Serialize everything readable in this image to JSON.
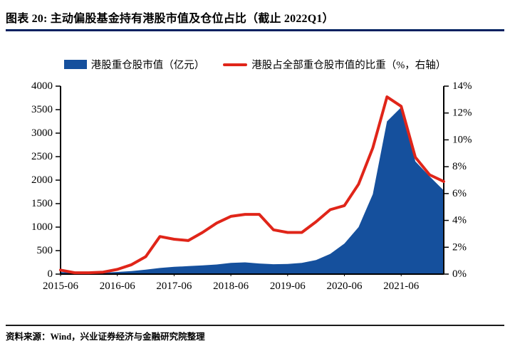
{
  "header": {
    "title": "图表 20:  主动偏股基金持有港股市值及仓位占比（截止 2022Q1）",
    "accent_color": "#002060"
  },
  "legend": {
    "items": [
      {
        "icon": "area-swatch",
        "label": "港股重仓股市值（亿元）"
      },
      {
        "icon": "line-swatch",
        "label": "港股占全部重仓股市值的比重（%，右轴）"
      }
    ]
  },
  "chart_data": {
    "type": "area+line",
    "title": "主动偏股基金持有港股市值及仓位占比",
    "grid": false,
    "legend_position": "top",
    "x": [
      "2015-06",
      "2015-09",
      "2015-12",
      "2016-03",
      "2016-06",
      "2016-09",
      "2016-12",
      "2017-03",
      "2017-06",
      "2017-09",
      "2017-12",
      "2018-03",
      "2018-06",
      "2018-09",
      "2018-12",
      "2019-03",
      "2019-06",
      "2019-09",
      "2019-12",
      "2020-03",
      "2020-06",
      "2020-09",
      "2020-12",
      "2021-03",
      "2021-06",
      "2021-09",
      "2021-12",
      "2022-03"
    ],
    "series": [
      {
        "name": "港股重仓股市值（亿元）",
        "type": "area",
        "axis": "left",
        "color": "#15509D",
        "values": [
          45,
          25,
          25,
          30,
          45,
          65,
          95,
          130,
          155,
          170,
          185,
          205,
          240,
          250,
          225,
          210,
          215,
          240,
          300,
          430,
          650,
          1000,
          1700,
          3250,
          3550,
          2400,
          2080,
          1780
        ]
      },
      {
        "name": "港股占全部重仓股市值的比重（%，右轴）",
        "type": "line",
        "axis": "right",
        "color": "#E02519",
        "values": [
          0.3,
          0.1,
          0.1,
          0.15,
          0.35,
          0.7,
          1.3,
          2.8,
          2.6,
          2.5,
          3.1,
          3.8,
          4.3,
          4.45,
          4.45,
          3.3,
          3.1,
          3.1,
          3.9,
          4.8,
          5.1,
          6.7,
          9.4,
          13.2,
          12.5,
          8.7,
          7.4,
          6.9
        ]
      }
    ],
    "left_axis": {
      "min": 0,
      "max": 4000,
      "step": 500,
      "tick_labels": [
        "0",
        "500",
        "1000",
        "1500",
        "2000",
        "2500",
        "3000",
        "3500",
        "4000"
      ]
    },
    "right_axis": {
      "min": 0,
      "max": 14,
      "step": 2,
      "tick_labels": [
        "0%",
        "2%",
        "4%",
        "6%",
        "8%",
        "10%",
        "12%",
        "14%"
      ]
    },
    "x_tick_labels": [
      "2015-06",
      "2016-06",
      "2017-06",
      "2018-06",
      "2019-06",
      "2020-06",
      "2021-06"
    ],
    "x_tick_indices": [
      0,
      4,
      8,
      12,
      16,
      20,
      24
    ]
  },
  "source": {
    "text": "资料来源：Wind，兴业证券经济与金融研究院整理"
  }
}
